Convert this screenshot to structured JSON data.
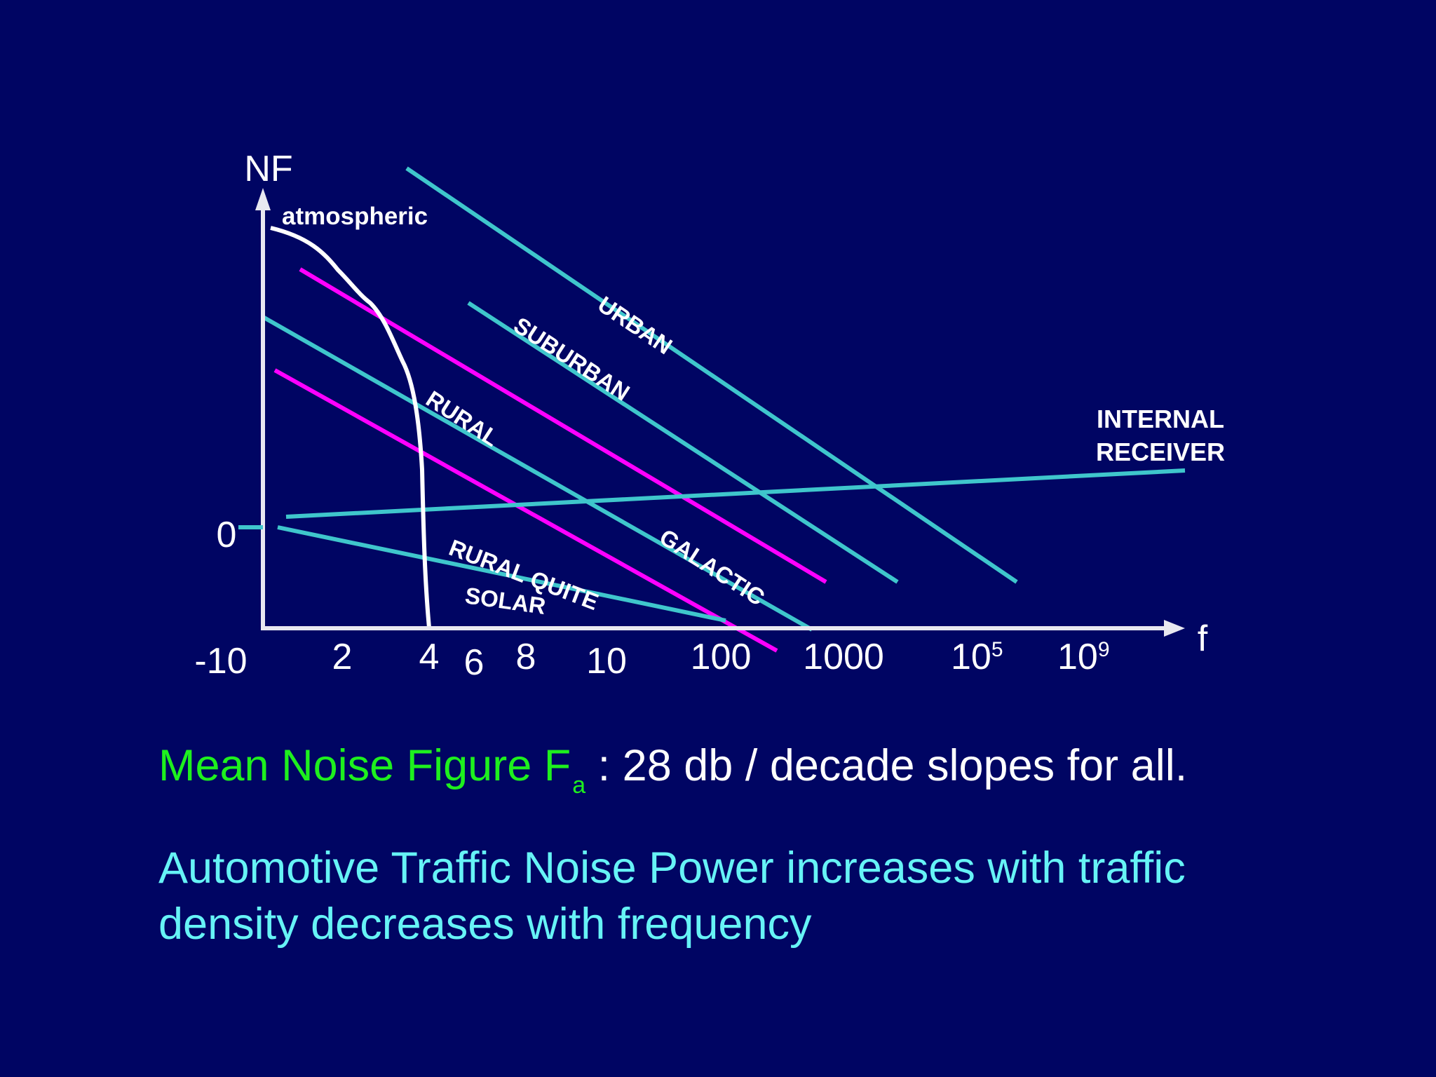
{
  "chart_data": {
    "type": "line",
    "ylabel": "NF",
    "xlabel": "f",
    "x_ticks": [
      "-10",
      "2",
      "4",
      "6",
      "8",
      "10",
      "100",
      "1000",
      "10",
      "10"
    ],
    "x_tick_exponents": {
      "8": "5",
      "9": "9"
    },
    "y_ticks": [
      "0"
    ],
    "series": [
      {
        "name": "URBAN",
        "color": "#3fc6cc"
      },
      {
        "name": "SUBURBAN",
        "color": "#3fc6cc"
      },
      {
        "name": "RURAL",
        "color": "#3fc6cc"
      },
      {
        "name": "GALACTIC",
        "color": "#ff00ff"
      },
      {
        "name": "RURAL QUITE",
        "color": "#ff00ff"
      },
      {
        "name": "SOLAR",
        "color": "#3fc6cc"
      },
      {
        "name": "atmospheric",
        "color": "#ffffff"
      },
      {
        "name": "INTERNAL RECEIVER",
        "color": "#3fc6cc"
      }
    ],
    "grid": false
  },
  "captions": {
    "line1_green": "Mean Noise Figure F",
    "line1_sub": "a",
    "line1_rest": " : 28 db / decade slopes for all.",
    "line2": "Automotive Traffic Noise Power increases with traffic density decreases with frequency"
  },
  "colors": {
    "background": "#000563",
    "cyan_line": "#3fc6cc",
    "magenta_line": "#ff00ff",
    "axis": "#e8e8f0",
    "green_text": "#1ef01e",
    "cyan_text": "#66f3f6"
  }
}
